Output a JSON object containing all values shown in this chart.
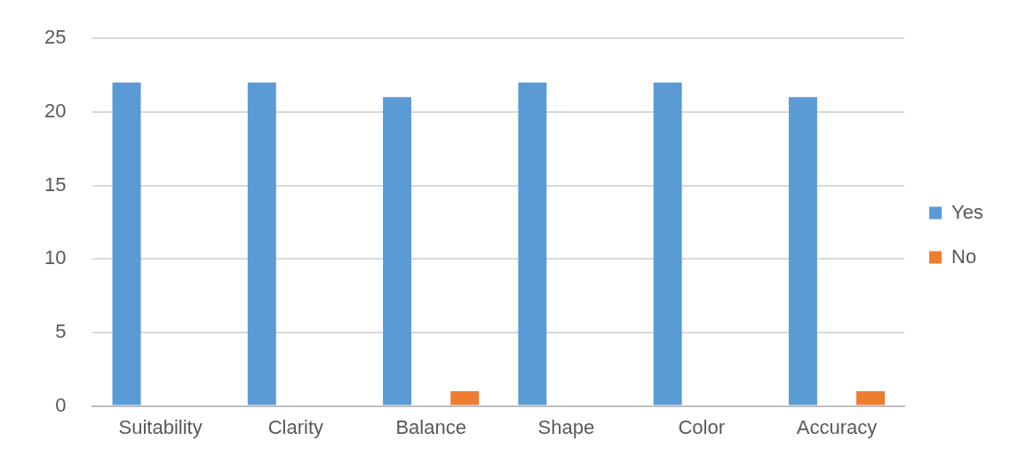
{
  "chart_data": {
    "type": "bar",
    "categories": [
      "Suitability",
      "Clarity",
      "Balance",
      "Shape",
      "Color",
      "Accuracy"
    ],
    "series": [
      {
        "name": "Yes",
        "color": "#5b9bd5",
        "values": [
          22,
          22,
          21,
          22,
          22,
          21
        ]
      },
      {
        "name": "No",
        "color": "#ed7d31",
        "values": [
          0,
          0,
          1,
          0,
          0,
          1
        ]
      }
    ],
    "ylim": [
      0,
      25
    ],
    "yticks": [
      0,
      5,
      10,
      15,
      20,
      25
    ],
    "grid": "y",
    "legend": "right"
  }
}
